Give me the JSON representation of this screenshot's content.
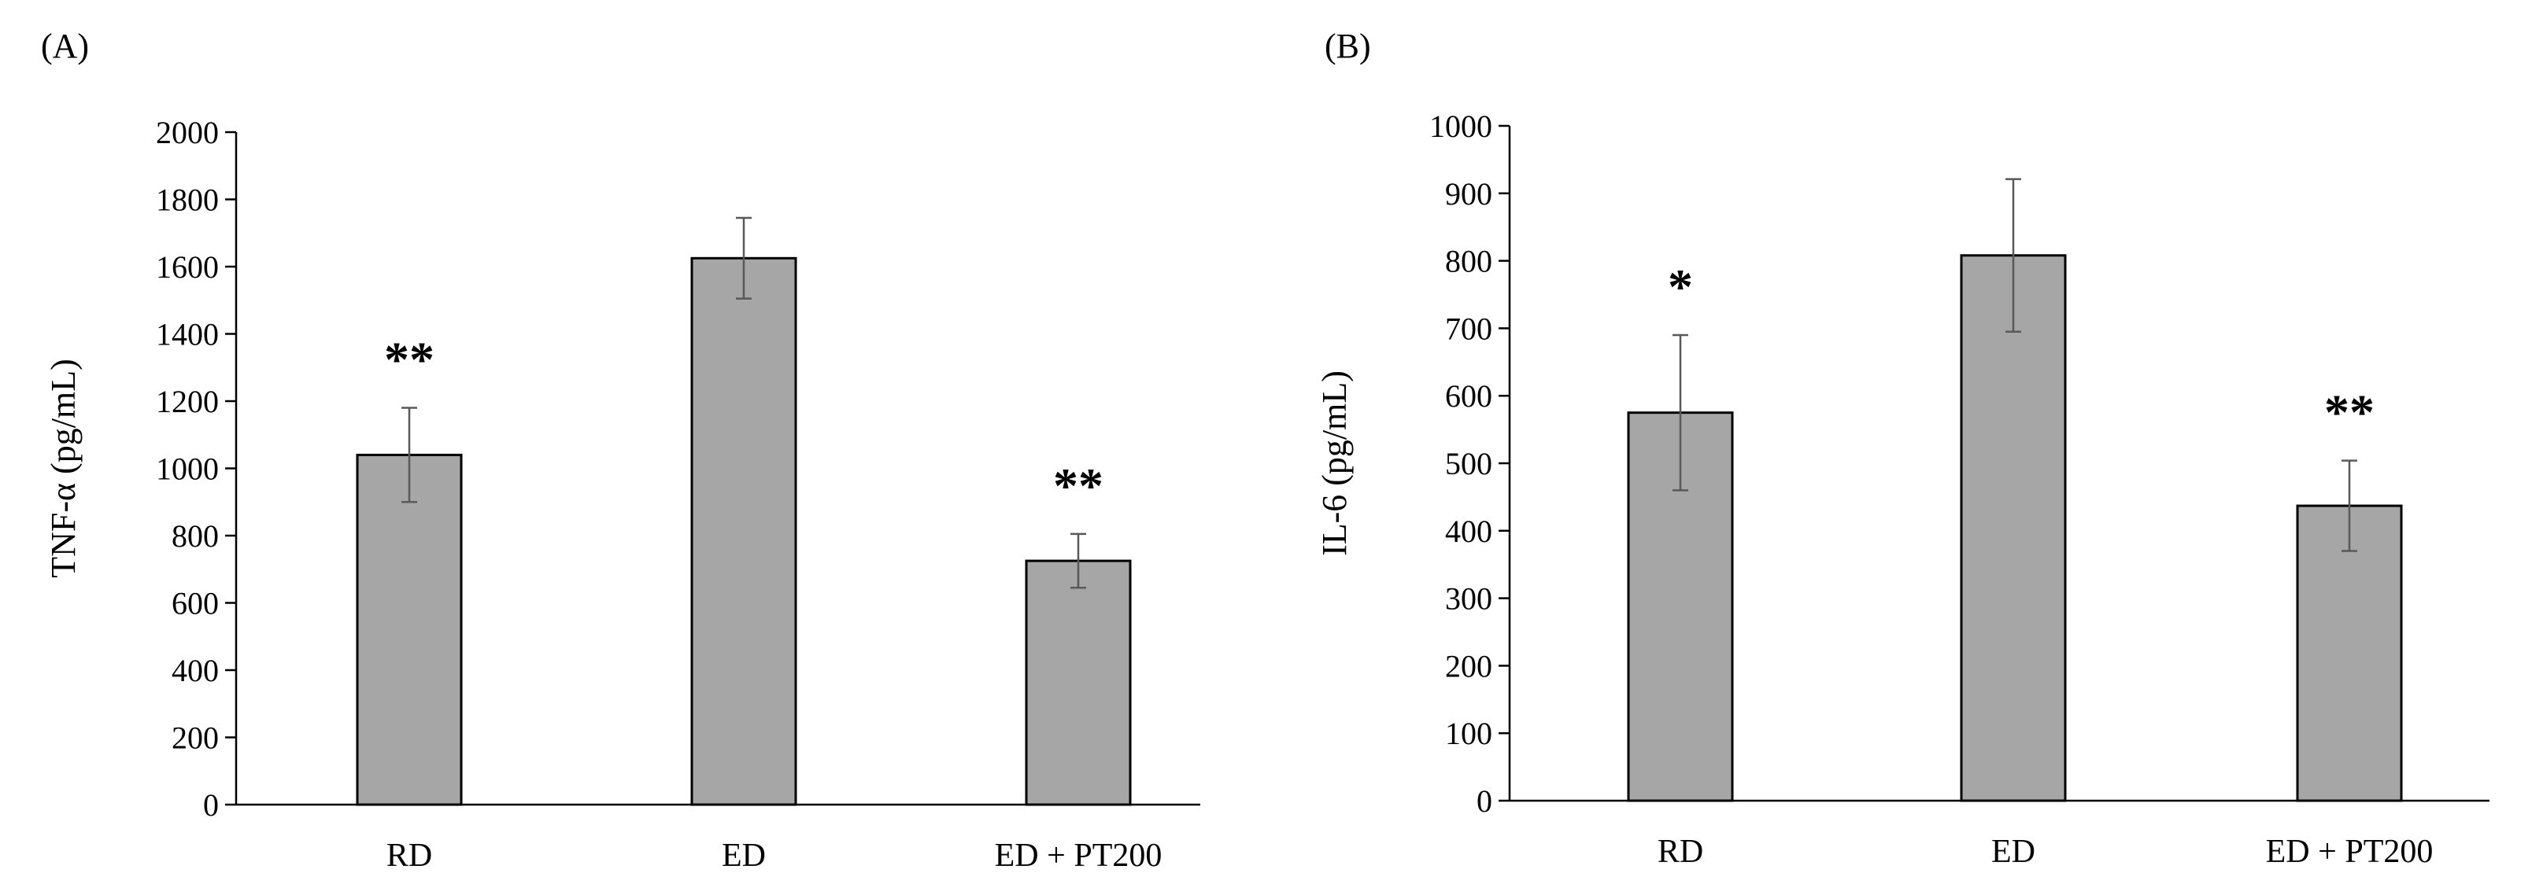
{
  "figure": {
    "panels": [
      "(A)",
      "(B)"
    ]
  },
  "chart_data": [
    {
      "type": "bar",
      "panel_label": "(A)",
      "title": "",
      "xlabel": "",
      "ylabel": "TNF-α (pg/mL)",
      "categories": [
        "RD",
        "ED",
        "ED + PT200"
      ],
      "values": [
        1040,
        1625,
        725
      ],
      "errors": [
        140,
        120,
        80
      ],
      "annotations": [
        "**",
        "",
        "**"
      ],
      "ylim": [
        0,
        2000
      ],
      "yticks": [
        "0",
        "200",
        "400",
        "600",
        "800",
        "1000",
        "1200",
        "1400",
        "1600",
        "1800",
        "2000"
      ],
      "bar_color": "#a6a6a6",
      "grid": false
    },
    {
      "type": "bar",
      "panel_label": "(B)",
      "title": "",
      "xlabel": "",
      "ylabel": "IL-6 (pg/mL)",
      "categories": [
        "RD",
        "ED",
        "ED + PT200"
      ],
      "values": [
        575,
        808,
        437
      ],
      "errors": [
        115,
        113,
        67
      ],
      "annotations": [
        "*",
        "",
        "**"
      ],
      "ylim": [
        0,
        1000
      ],
      "yticks": [
        "0",
        "100",
        "200",
        "300",
        "400",
        "500",
        "600",
        "700",
        "800",
        "900",
        "1000"
      ],
      "bar_color": "#a6a6a6",
      "grid": false
    }
  ]
}
